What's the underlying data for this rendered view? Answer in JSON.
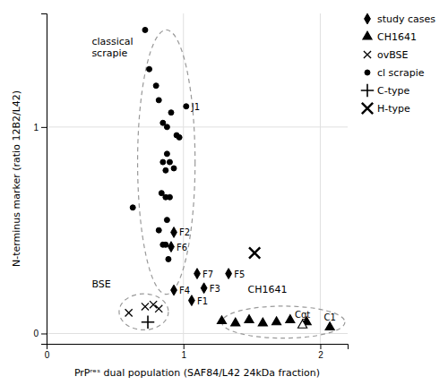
{
  "chart_data": {
    "type": "scatter",
    "xlabel": "PrPʳᵉˢ dual population (SAF84/L42 24kDa fraction)",
    "ylabel": "N-terminus marker (ratio 12B2/L42)",
    "xlim": [
      0,
      2.2
    ],
    "ylim": [
      -0.05,
      1.55
    ],
    "xticks": [
      0,
      1,
      2
    ],
    "yticks": [
      0,
      1
    ],
    "grid": true,
    "legend": "right",
    "series": [
      {
        "name": "study cases",
        "marker": "diamond",
        "color": "#000000",
        "x": [
          0.93,
          0.91,
          0.93,
          1.06,
          1.15,
          1.1,
          1.33
        ],
        "y": [
          0.49,
          0.42,
          0.21,
          0.16,
          0.22,
          0.29,
          0.29
        ],
        "labels": [
          "F2",
          "F6",
          "F4",
          "F1",
          "F3",
          "F7",
          "F5"
        ]
      },
      {
        "name": "CH1641",
        "marker": "triangle",
        "color": "#000000",
        "colors": [
          "#000000",
          "#000000",
          "#000000",
          "#000000",
          "#000000",
          "#000000",
          "#000000",
          "#ffffff",
          "#000000"
        ],
        "x": [
          1.28,
          1.38,
          1.48,
          1.58,
          1.68,
          1.78,
          1.9,
          1.87,
          2.07
        ],
        "y": [
          0.06,
          0.05,
          0.065,
          0.05,
          0.055,
          0.065,
          0.055,
          0.04,
          0.03
        ],
        "labels": [
          null,
          null,
          null,
          null,
          null,
          null,
          null,
          "Cgt",
          "C1"
        ]
      },
      {
        "name": "ovBSE",
        "marker": "x",
        "color": "#000000",
        "x": [
          0.6,
          0.72,
          0.78,
          0.82
        ],
        "y": [
          0.1,
          0.13,
          0.14,
          0.12
        ]
      },
      {
        "name": "cl scrapie",
        "marker": "circle",
        "color": "#000000",
        "x": [
          0.72,
          0.75,
          0.8,
          0.85,
          0.88,
          0.91,
          0.97,
          0.88,
          0.85,
          0.9,
          0.87,
          0.93,
          0.84,
          0.87,
          0.9,
          0.88,
          0.82,
          0.85,
          0.87,
          0.89,
          0.63,
          0.95,
          0.82,
          1.02
        ],
        "y": [
          1.47,
          1.28,
          1.2,
          1.02,
          1.0,
          1.07,
          0.95,
          0.87,
          0.83,
          0.83,
          0.79,
          0.8,
          0.68,
          0.66,
          0.66,
          0.55,
          0.5,
          0.43,
          0.43,
          0.36,
          0.61,
          0.96,
          1.13,
          1.1
        ],
        "labels": [
          null,
          null,
          null,
          null,
          null,
          null,
          null,
          null,
          null,
          null,
          null,
          null,
          null,
          null,
          null,
          null,
          null,
          null,
          null,
          null,
          null,
          null,
          null,
          "J1"
        ]
      },
      {
        "name": "C-type",
        "marker": "plus",
        "color": "#000000",
        "x": [
          0.74
        ],
        "y": [
          0.055
        ]
      },
      {
        "name": "H-type",
        "marker": "thick-x",
        "color": "#000000",
        "x": [
          1.52
        ],
        "y": [
          0.39
        ]
      }
    ],
    "ellipses": [
      {
        "cx": 0.875,
        "cy": 0.83,
        "width": 0.42,
        "height": 1.28
      },
      {
        "cx": 0.71,
        "cy": 0.105,
        "width": 0.36,
        "height": 0.175
      },
      {
        "cx": 1.73,
        "cy": 0.055,
        "width": 0.9,
        "height": 0.155
      }
    ],
    "annotations": [
      {
        "text": "classical\nscrapie",
        "x": 0.33,
        "y": 1.44
      },
      {
        "text": "BSE",
        "x": 0.33,
        "y": 0.265
      },
      {
        "text": "CH1641",
        "x": 1.47,
        "y": 0.24
      }
    ]
  }
}
